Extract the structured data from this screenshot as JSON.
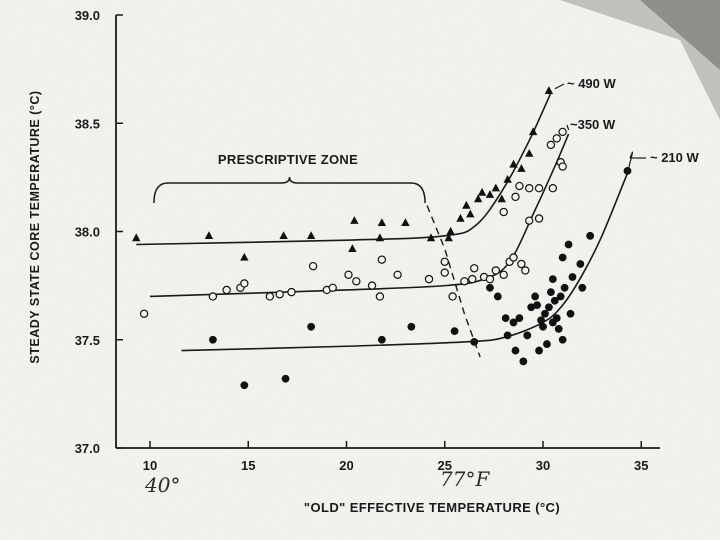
{
  "chart_data": {
    "type": "scatter",
    "title": "",
    "xlabel": "\"OLD\" EFFECTIVE TEMPERATURE (°C)",
    "ylabel": "STEADY STATE CORE TEMPERATURE (°C)",
    "xlim": [
      9,
      35.5
    ],
    "ylim": [
      37.0,
      39.0
    ],
    "x_ticks": [
      "10",
      "15",
      "20",
      "25",
      "30",
      "35"
    ],
    "y_ticks": [
      "37.0",
      "37.5",
      "38.0",
      "38.5",
      "39.0"
    ],
    "grid": false,
    "annotations": {
      "zone_label": "PRESCRIPTIVE ZONE",
      "handwritten_left": "40°",
      "handwritten_right": "77°F"
    },
    "series": [
      {
        "name": "~ 490 W",
        "marker": "triangle",
        "points": [
          [
            9.3,
            37.97
          ],
          [
            13.0,
            37.98
          ],
          [
            14.8,
            37.88
          ],
          [
            16.8,
            37.98
          ],
          [
            18.2,
            37.98
          ],
          [
            20.3,
            37.92
          ],
          [
            20.4,
            38.05
          ],
          [
            21.7,
            37.97
          ],
          [
            21.8,
            38.04
          ],
          [
            23.0,
            38.04
          ],
          [
            24.3,
            37.97
          ],
          [
            25.2,
            37.97
          ],
          [
            25.3,
            38.0
          ],
          [
            25.8,
            38.06
          ],
          [
            26.1,
            38.12
          ],
          [
            26.3,
            38.08
          ],
          [
            26.7,
            38.15
          ],
          [
            26.9,
            38.18
          ],
          [
            27.3,
            38.17
          ],
          [
            27.6,
            38.2
          ],
          [
            27.9,
            38.15
          ],
          [
            28.2,
            38.24
          ],
          [
            28.5,
            38.31
          ],
          [
            28.9,
            38.29
          ],
          [
            29.3,
            38.36
          ],
          [
            29.5,
            38.46
          ],
          [
            30.3,
            38.65
          ]
        ],
        "fit": [
          [
            9.3,
            37.94
          ],
          [
            20.0,
            37.96
          ],
          [
            25.0,
            37.98
          ],
          [
            26.6,
            38.03
          ],
          [
            28.0,
            38.2
          ],
          [
            29.3,
            38.42
          ],
          [
            30.4,
            38.64
          ]
        ]
      },
      {
        "name": "~350 W",
        "marker": "circle-open",
        "points": [
          [
            9.7,
            37.62
          ],
          [
            13.2,
            37.7
          ],
          [
            13.9,
            37.73
          ],
          [
            14.6,
            37.74
          ],
          [
            14.8,
            37.76
          ],
          [
            16.1,
            37.7
          ],
          [
            16.6,
            37.71
          ],
          [
            17.2,
            37.72
          ],
          [
            18.3,
            37.84
          ],
          [
            19.0,
            37.73
          ],
          [
            19.3,
            37.74
          ],
          [
            20.1,
            37.8
          ],
          [
            20.5,
            37.77
          ],
          [
            21.3,
            37.75
          ],
          [
            21.7,
            37.7
          ],
          [
            21.8,
            37.87
          ],
          [
            22.6,
            37.8
          ],
          [
            24.2,
            37.78
          ],
          [
            25.0,
            37.86
          ],
          [
            25.0,
            37.81
          ],
          [
            25.4,
            37.7
          ],
          [
            26.0,
            37.77
          ],
          [
            26.4,
            37.78
          ],
          [
            26.5,
            37.83
          ],
          [
            27.0,
            37.79
          ],
          [
            27.3,
            37.78
          ],
          [
            27.6,
            37.82
          ],
          [
            28.0,
            37.8
          ],
          [
            28.0,
            38.09
          ],
          [
            28.3,
            37.86
          ],
          [
            28.5,
            37.88
          ],
          [
            28.6,
            38.16
          ],
          [
            28.8,
            38.21
          ],
          [
            28.9,
            37.85
          ],
          [
            29.1,
            37.82
          ],
          [
            29.3,
            38.05
          ],
          [
            29.3,
            38.2
          ],
          [
            29.8,
            38.2
          ],
          [
            29.8,
            38.06
          ],
          [
            30.4,
            38.4
          ],
          [
            30.5,
            38.2
          ],
          [
            30.7,
            38.43
          ],
          [
            30.9,
            38.32
          ],
          [
            31.0,
            38.3
          ],
          [
            31.0,
            38.46
          ]
        ],
        "fit": [
          [
            10.0,
            37.7
          ],
          [
            20.0,
            37.73
          ],
          [
            25.0,
            37.75
          ],
          [
            27.0,
            37.78
          ],
          [
            28.3,
            37.86
          ],
          [
            29.6,
            38.1
          ],
          [
            30.6,
            38.3
          ],
          [
            31.3,
            38.45
          ]
        ]
      },
      {
        "name": "~ 210 W",
        "marker": "circle-filled",
        "points": [
          [
            13.2,
            37.5
          ],
          [
            14.8,
            37.29
          ],
          [
            16.9,
            37.32
          ],
          [
            18.2,
            37.56
          ],
          [
            21.8,
            37.5
          ],
          [
            23.3,
            37.56
          ],
          [
            25.5,
            37.54
          ],
          [
            26.5,
            37.49
          ],
          [
            27.3,
            37.74
          ],
          [
            27.7,
            37.7
          ],
          [
            28.1,
            37.6
          ],
          [
            28.2,
            37.52
          ],
          [
            28.5,
            37.58
          ],
          [
            28.6,
            37.45
          ],
          [
            28.8,
            37.6
          ],
          [
            29.0,
            37.4
          ],
          [
            29.2,
            37.52
          ],
          [
            29.4,
            37.65
          ],
          [
            29.6,
            37.7
          ],
          [
            29.7,
            37.66
          ],
          [
            29.8,
            37.45
          ],
          [
            29.9,
            37.59
          ],
          [
            30.0,
            37.56
          ],
          [
            30.1,
            37.62
          ],
          [
            30.2,
            37.48
          ],
          [
            30.3,
            37.65
          ],
          [
            30.4,
            37.72
          ],
          [
            30.5,
            37.58
          ],
          [
            30.5,
            37.78
          ],
          [
            30.6,
            37.68
          ],
          [
            30.7,
            37.6
          ],
          [
            30.8,
            37.55
          ],
          [
            30.9,
            37.7
          ],
          [
            31.0,
            37.88
          ],
          [
            31.0,
            37.5
          ],
          [
            31.1,
            37.74
          ],
          [
            31.3,
            37.94
          ],
          [
            31.4,
            37.62
          ],
          [
            31.5,
            37.79
          ],
          [
            31.9,
            37.85
          ],
          [
            32.0,
            37.74
          ],
          [
            32.4,
            37.98
          ],
          [
            34.3,
            38.28
          ]
        ],
        "fit": [
          [
            11.6,
            37.45
          ],
          [
            20.0,
            37.47
          ],
          [
            26.0,
            37.49
          ],
          [
            28.0,
            37.51
          ],
          [
            30.0,
            37.58
          ],
          [
            31.0,
            37.66
          ],
          [
            32.0,
            37.8
          ],
          [
            33.0,
            37.98
          ],
          [
            34.3,
            38.27
          ]
        ]
      }
    ],
    "zone_boundary": [
      [
        24.1,
        38.12
      ],
      [
        25.0,
        37.92
      ],
      [
        26.0,
        37.62
      ],
      [
        26.8,
        37.42
      ]
    ],
    "zone_bracket_x": [
      10.2,
      24.0
    ]
  }
}
